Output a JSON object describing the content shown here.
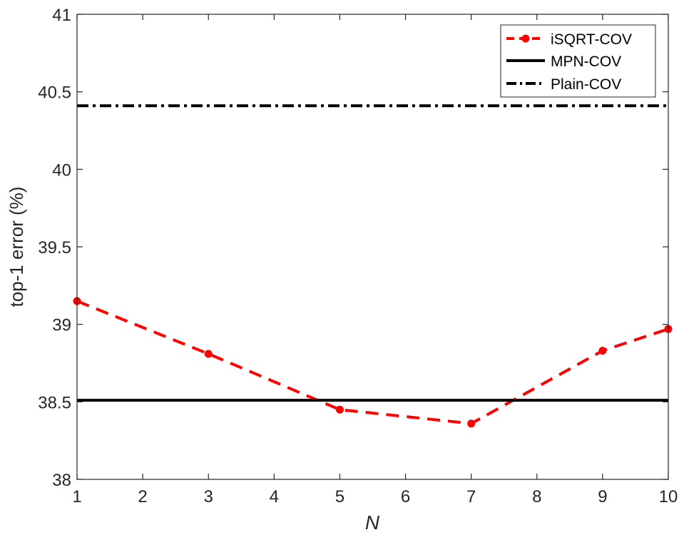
{
  "chart_data": {
    "type": "line",
    "xlabel": "N",
    "ylabel": "top-1 error (%)",
    "xlim": [
      1,
      10
    ],
    "ylim": [
      38,
      41
    ],
    "xticks": [
      1,
      2,
      3,
      4,
      5,
      6,
      7,
      8,
      9,
      10
    ],
    "yticks": [
      38,
      38.5,
      39,
      39.5,
      40,
      40.5,
      41
    ],
    "xtick_labels": [
      "1",
      "2",
      "3",
      "4",
      "5",
      "6",
      "7",
      "8",
      "9",
      "10"
    ],
    "ytick_labels": [
      "38",
      "38.5",
      "39",
      "39.5",
      "40",
      "40.5",
      "41"
    ],
    "grid": false,
    "legend_position": "top-right",
    "series": [
      {
        "name": "iSQRT-COV",
        "style": "dashed-with-markers",
        "color": "#ff0000",
        "x": [
          1,
          3,
          5,
          7,
          9,
          10
        ],
        "y": [
          39.15,
          38.81,
          38.45,
          38.36,
          38.83,
          38.97
        ]
      },
      {
        "name": "MPN-COV",
        "style": "solid",
        "color": "#000000",
        "x": [
          1,
          10
        ],
        "y": [
          38.51,
          38.51
        ]
      },
      {
        "name": "Plain-COV",
        "style": "dash-dot",
        "color": "#000000",
        "x": [
          1,
          10
        ],
        "y": [
          40.41,
          40.41
        ]
      }
    ]
  }
}
